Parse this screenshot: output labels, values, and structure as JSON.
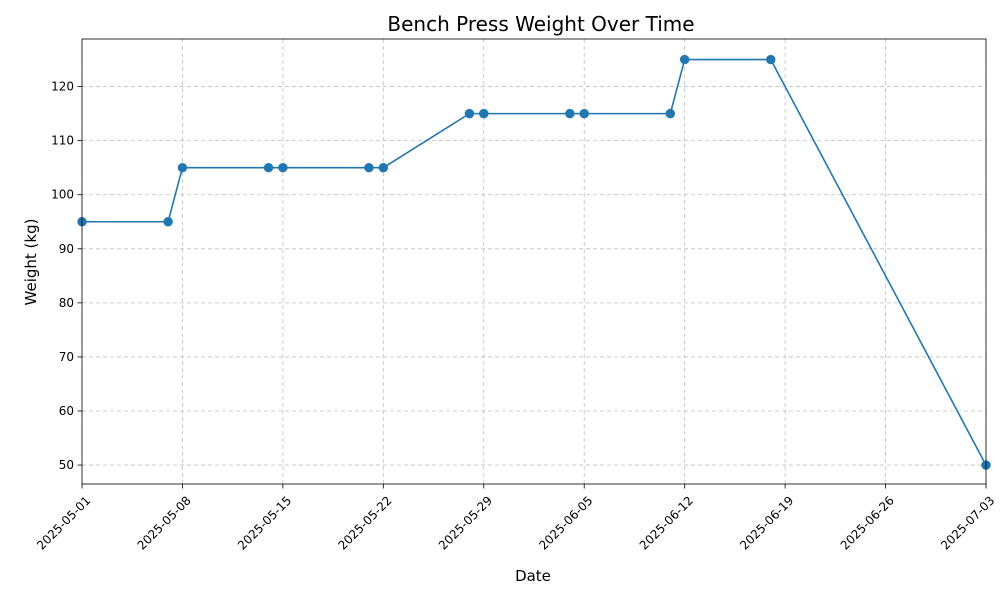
{
  "chart_data": {
    "type": "line",
    "title": "Bench Press Weight Over Time",
    "xlabel": "Date",
    "ylabel": "Weight (kg)",
    "x_is_date": true,
    "xlim": [
      "2025-05-01",
      "2025-07-03"
    ],
    "ylim": [
      46.5,
      128.8
    ],
    "grid": true,
    "legend": "none",
    "x_ticks": [
      "2025-05-01",
      "2025-05-08",
      "2025-05-15",
      "2025-05-22",
      "2025-05-29",
      "2025-06-05",
      "2025-06-12",
      "2025-06-19",
      "2025-06-26",
      "2025-07-03"
    ],
    "y_ticks": [
      50,
      60,
      70,
      80,
      90,
      100,
      110,
      120
    ],
    "series": [
      {
        "color": "#1f77b4",
        "points": [
          {
            "x": "2025-05-01",
            "y": 95
          },
          {
            "x": "2025-05-07",
            "y": 95
          },
          {
            "x": "2025-05-08",
            "y": 105
          },
          {
            "x": "2025-05-14",
            "y": 105
          },
          {
            "x": "2025-05-15",
            "y": 105
          },
          {
            "x": "2025-05-21",
            "y": 105
          },
          {
            "x": "2025-05-22",
            "y": 105
          },
          {
            "x": "2025-05-28",
            "y": 115
          },
          {
            "x": "2025-05-29",
            "y": 115
          },
          {
            "x": "2025-06-04",
            "y": 115
          },
          {
            "x": "2025-06-05",
            "y": 115
          },
          {
            "x": "2025-06-11",
            "y": 115
          },
          {
            "x": "2025-06-12",
            "y": 125
          },
          {
            "x": "2025-06-18",
            "y": 125
          },
          {
            "x": "2025-07-03",
            "y": 50
          }
        ]
      }
    ]
  }
}
